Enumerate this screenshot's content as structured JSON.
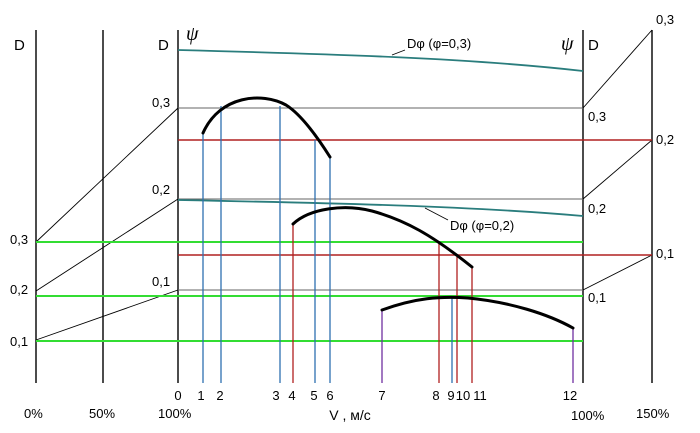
{
  "left_axis": {
    "header": "D",
    "ticks": [
      "0,3",
      "0,2",
      "0,1"
    ],
    "pct_0": "0%",
    "pct_50": "50%"
  },
  "main_axis": {
    "header_d": "D",
    "header_psi": "ψ",
    "ticks": [
      "0,3",
      "0,2",
      "0,1"
    ],
    "pct_100": "100%"
  },
  "x_axis": {
    "numbers": [
      "0",
      "1",
      "2",
      "3",
      "4",
      "5",
      "6",
      "7",
      "8",
      "9",
      "10",
      "11",
      "12"
    ],
    "label": "V , м/с"
  },
  "right_axis": {
    "header_psi": "ψ",
    "header_d": "D",
    "inner_ticks": [
      "0,3",
      "0,2",
      "0,1"
    ],
    "outer_ticks": [
      "0,3",
      "0,2",
      "0,1"
    ],
    "pct_100": "100%",
    "pct_150": "150%"
  },
  "curve_labels": {
    "d_phi_03": "Dφ (φ=0,3)",
    "d_phi_02": "Dφ (φ=0,2)"
  },
  "colors": {
    "green_lines": "#33dd33",
    "red_lines": "#b02020",
    "teal_curves": "#2a7d7d",
    "blue_verticals": "#2e70b0",
    "purple_vertical": "#7030a0",
    "black": "#000000"
  }
}
